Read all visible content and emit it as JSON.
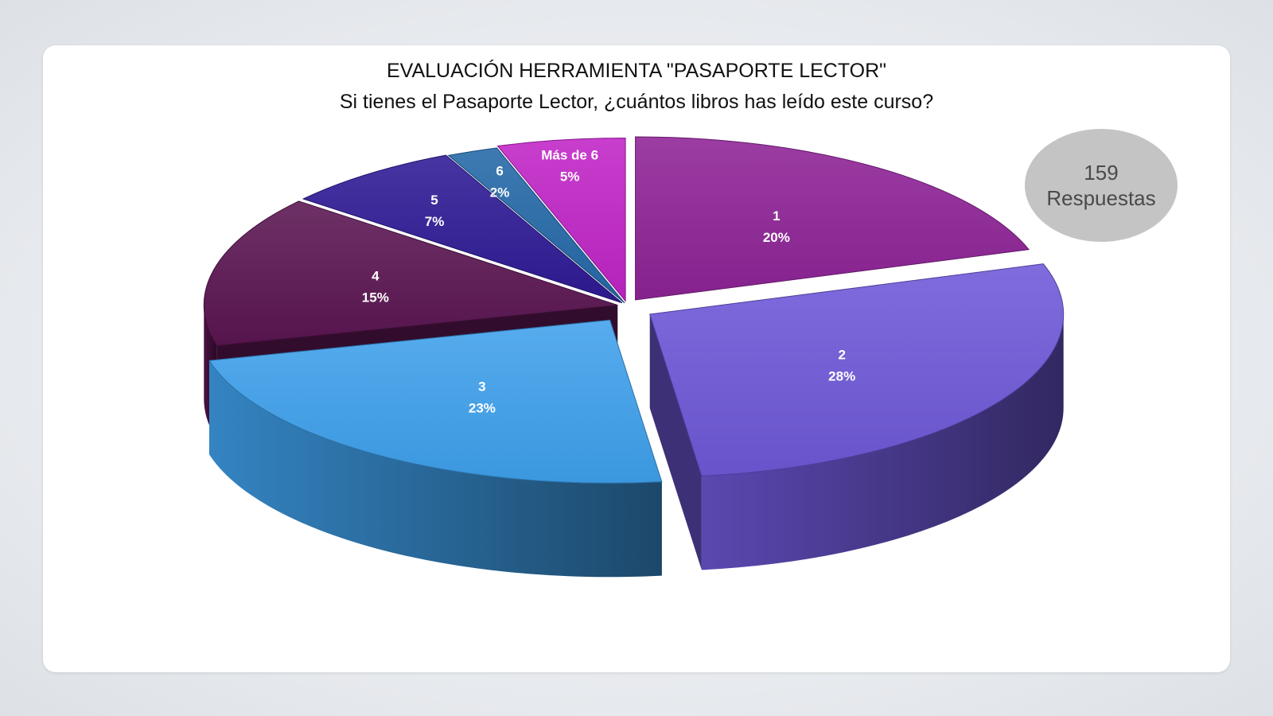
{
  "header": {
    "title": "EVALUACIÓN HERRAMIENTA \"PASAPORTE LECTOR\"",
    "subtitle": "Si tienes el Pasaporte Lector, ¿cuántos libros has leído este curso?"
  },
  "badge": {
    "count": "159",
    "label": "Respuestas"
  },
  "chart_data": {
    "type": "pie",
    "title": "EVALUACIÓN HERRAMIENTA \"PASAPORTE LECTOR\"",
    "subtitle": "Si tienes el Pasaporte Lector, ¿cuántos libros has leído este curso?",
    "style": "3d-exploded",
    "slices": [
      {
        "name": "1",
        "value": 20,
        "label": "20%",
        "color": "#8e2396"
      },
      {
        "name": "2",
        "value": 28,
        "label": "28%",
        "color": "#6f58d8"
      },
      {
        "name": "3",
        "value": 23,
        "label": "23%",
        "color": "#3fa1ec"
      },
      {
        "name": "4",
        "value": 15,
        "label": "15%",
        "color": "#5a1551"
      },
      {
        "name": "5",
        "value": 7,
        "label": "7%",
        "color": "#2e1a95"
      },
      {
        "name": "6",
        "value": 2,
        "label": "2%",
        "color": "#2468a8"
      },
      {
        "name": "Más de 6",
        "value": 5,
        "label": "5%",
        "color": "#c024c6"
      }
    ]
  }
}
